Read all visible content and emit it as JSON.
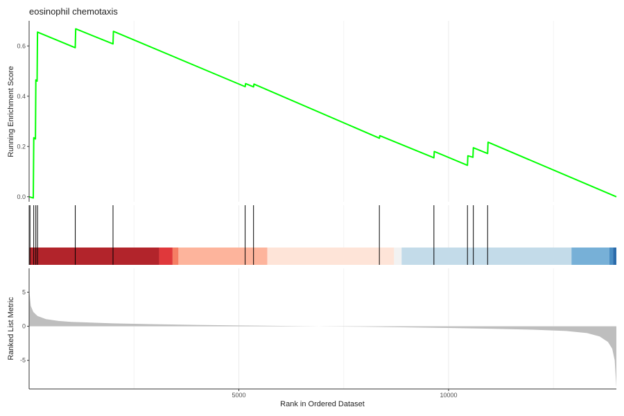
{
  "chart_data": {
    "type": "line",
    "title": "eosinophil chemotaxis",
    "xlabel": "Rank in Ordered Dataset",
    "xlim": [
      0,
      14000
    ],
    "x_ticks": [
      5000,
      10000
    ],
    "grid": true,
    "legend": "none",
    "panels": {
      "enrichment": {
        "ylabel": "Running Enrichment Score",
        "ylim": [
          -0.02,
          0.7
        ],
        "y_ticks": [
          {
            "value": 0.0,
            "label": "0.0"
          },
          {
            "value": 0.2,
            "label": "0.2"
          },
          {
            "value": 0.4,
            "label": "0.4"
          },
          {
            "value": 0.6,
            "label": "0.6"
          }
        ],
        "line_color": "#00ff00",
        "points": [
          [
            0,
            0.0
          ],
          [
            100,
            -0.005
          ],
          [
            110,
            0.235
          ],
          [
            150,
            0.23
          ],
          [
            160,
            0.465
          ],
          [
            190,
            0.46
          ],
          [
            200,
            0.655
          ],
          [
            1100,
            0.593
          ],
          [
            1110,
            0.668
          ],
          [
            2000,
            0.608
          ],
          [
            2010,
            0.658
          ],
          [
            5150,
            0.438
          ],
          [
            5160,
            0.45
          ],
          [
            5350,
            0.437
          ],
          [
            5360,
            0.448
          ],
          [
            8350,
            0.233
          ],
          [
            8360,
            0.243
          ],
          [
            9650,
            0.155
          ],
          [
            9660,
            0.18
          ],
          [
            10450,
            0.125
          ],
          [
            10460,
            0.163
          ],
          [
            10580,
            0.157
          ],
          [
            10590,
            0.195
          ],
          [
            10930,
            0.172
          ],
          [
            10940,
            0.217
          ],
          [
            14000,
            0.0
          ]
        ]
      },
      "hits": {
        "positions": [
          20,
          110,
          160,
          200,
          1100,
          2000,
          5150,
          5350,
          8350,
          9650,
          10450,
          10590,
          10930
        ]
      },
      "color_bar": {
        "segments": [
          {
            "from": 0,
            "to": 3100,
            "color": "#b2242b"
          },
          {
            "from": 3100,
            "to": 3420,
            "color": "#e0383b"
          },
          {
            "from": 3420,
            "to": 3560,
            "color": "#f57e64"
          },
          {
            "from": 3560,
            "to": 5680,
            "color": "#fdb49c"
          },
          {
            "from": 5680,
            "to": 8700,
            "color": "#fee4d8"
          },
          {
            "from": 8700,
            "to": 8880,
            "color": "#f2f2f2"
          },
          {
            "from": 8880,
            "to": 12930,
            "color": "#c3dbe9"
          },
          {
            "from": 12930,
            "to": 13830,
            "color": "#77b0d7"
          },
          {
            "from": 13830,
            "to": 13920,
            "color": "#4a8ec4"
          },
          {
            "from": 13920,
            "to": 14000,
            "color": "#2b6cab"
          }
        ]
      },
      "ranked_metric": {
        "ylabel": "Ranked List Metric",
        "ylim": [
          -9.2,
          8.5
        ],
        "y_ticks": [
          {
            "value": 5,
            "label": "5"
          },
          {
            "value": 0,
            "label": "0"
          },
          {
            "value": -5,
            "label": "-5"
          }
        ],
        "fill_color": "#bebebe",
        "curve": [
          [
            0,
            5.5
          ],
          [
            40,
            3.0
          ],
          [
            100,
            2.1
          ],
          [
            200,
            1.5
          ],
          [
            400,
            1.05
          ],
          [
            700,
            0.78
          ],
          [
            1000,
            0.65
          ],
          [
            2000,
            0.42
          ],
          [
            3000,
            0.3
          ],
          [
            4000,
            0.2
          ],
          [
            5000,
            0.12
          ],
          [
            6000,
            0.06
          ],
          [
            6800,
            0.01
          ],
          [
            7000,
            -0.01
          ],
          [
            8000,
            -0.08
          ],
          [
            9000,
            -0.16
          ],
          [
            10000,
            -0.25
          ],
          [
            11000,
            -0.36
          ],
          [
            12000,
            -0.5
          ],
          [
            12800,
            -0.7
          ],
          [
            13300,
            -1.0
          ],
          [
            13600,
            -1.5
          ],
          [
            13800,
            -2.3
          ],
          [
            13900,
            -3.3
          ],
          [
            13960,
            -5.0
          ],
          [
            14000,
            -9.0
          ]
        ]
      }
    }
  }
}
